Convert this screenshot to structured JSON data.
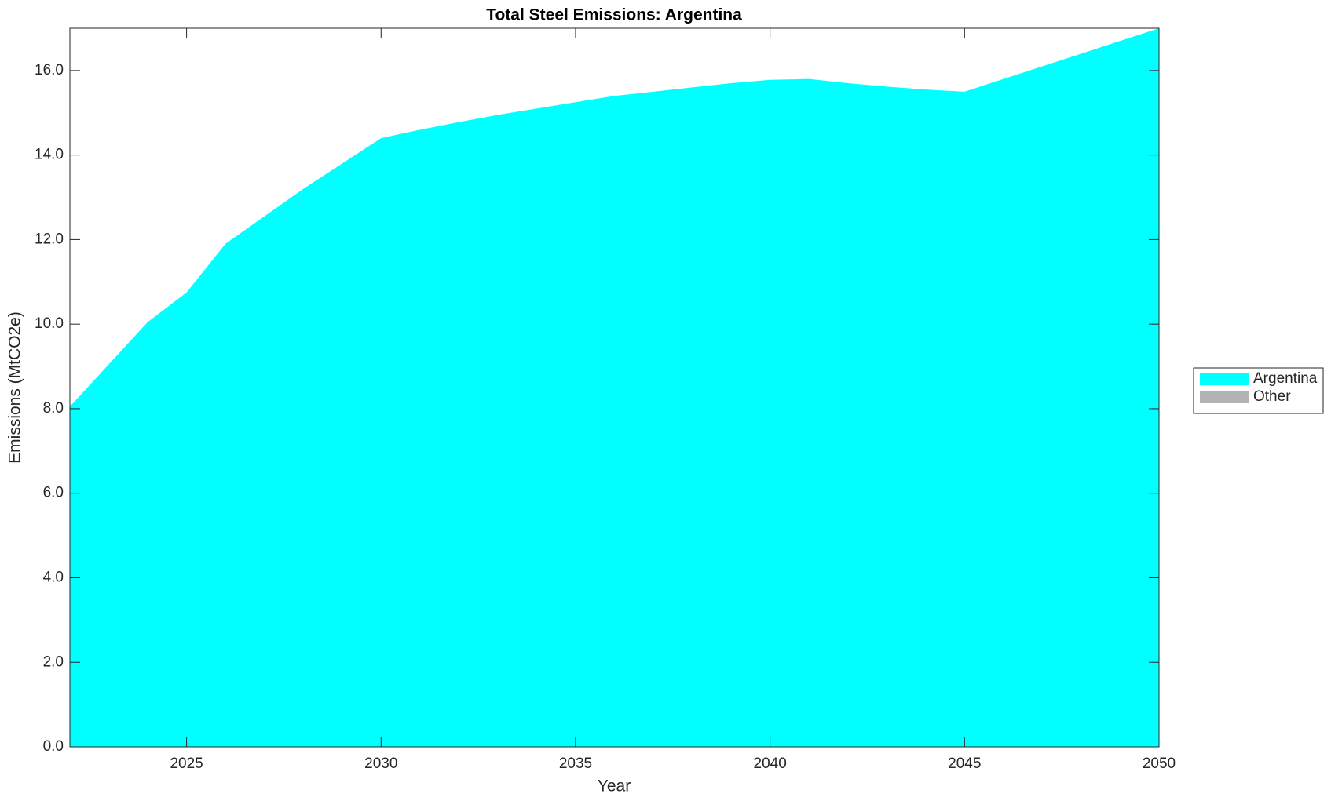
{
  "chart_data": {
    "type": "area",
    "title": "Total Steel Emissions: Argentina",
    "x_label": "Year",
    "y_label": "Emissions (MtCO2e)",
    "x": [
      2022,
      2023,
      2024,
      2025,
      2026,
      2027,
      2028,
      2029,
      2030,
      2031,
      2032,
      2033,
      2034,
      2035,
      2036,
      2037,
      2038,
      2039,
      2040,
      2041,
      2042,
      2043,
      2044,
      2045,
      2046,
      2047,
      2048,
      2049,
      2050
    ],
    "series": [
      {
        "name": "Argentina",
        "color": "#00ffff",
        "values": [
          8.05,
          9.05,
          10.05,
          10.75,
          11.9,
          12.55,
          13.2,
          13.8,
          14.4,
          14.6,
          14.78,
          14.95,
          15.1,
          15.25,
          15.4,
          15.5,
          15.6,
          15.7,
          15.78,
          15.8,
          15.7,
          15.62,
          15.55,
          15.5,
          15.8,
          16.1,
          16.4,
          16.7,
          17.0
        ]
      },
      {
        "name": "Other",
        "color": "#b3b3b3",
        "values": [
          0,
          0,
          0,
          0,
          0,
          0,
          0,
          0,
          0,
          0,
          0,
          0,
          0,
          0,
          0,
          0,
          0,
          0,
          0,
          0,
          0,
          0,
          0,
          0,
          0,
          0,
          0,
          0,
          0
        ]
      }
    ],
    "stacked": true,
    "xlim": [
      2022,
      2050
    ],
    "xticks": [
      2025,
      2030,
      2035,
      2040,
      2045,
      2050
    ],
    "ylim": [
      0,
      17
    ],
    "yticks": [
      {
        "value": 0,
        "label": "0.0"
      },
      {
        "value": 2,
        "label": "2.0"
      },
      {
        "value": 4,
        "label": "4.0"
      },
      {
        "value": 6,
        "label": "6.0"
      },
      {
        "value": 8,
        "label": "8.0"
      },
      {
        "value": 10,
        "label": "10.0"
      },
      {
        "value": 12,
        "label": "12.0"
      },
      {
        "value": 14,
        "label": "14.0"
      },
      {
        "value": 16,
        "label": "16.0"
      }
    ],
    "legend_position": "right"
  }
}
